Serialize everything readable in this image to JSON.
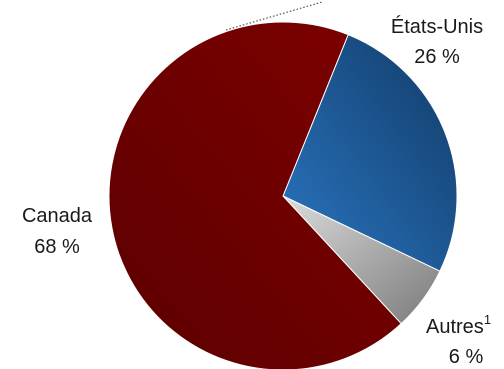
{
  "chart_data": {
    "type": "pie",
    "slices": [
      {
        "label": "Canada",
        "value": 68,
        "value_label": "68 %",
        "color": "#6b0000"
      },
      {
        "label": "États-Unis",
        "value": 26,
        "value_label": "26 %",
        "color": "#1f5a96"
      },
      {
        "label": "Autres",
        "label_sup": "1",
        "value": 6,
        "value_label": "6 %",
        "color": "#a8a8a8"
      }
    ],
    "start": "Canada slice begins at the top-right and runs counter-clockwise"
  }
}
